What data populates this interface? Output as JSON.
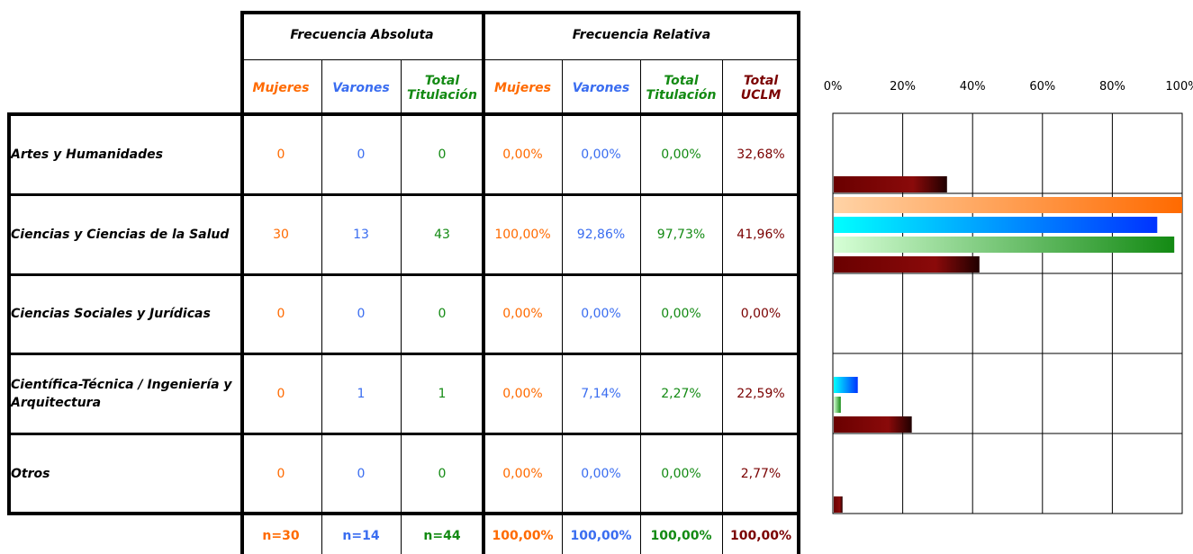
{
  "table": {
    "group_headers": {
      "absoluta": "Frecuencia Absoluta",
      "relativa": "Frecuencia Relativa"
    },
    "columns": [
      "Mujeres",
      "Varones",
      "Total Titulación",
      "Mujeres",
      "Varones",
      "Total Titulación",
      "Total UCLM"
    ],
    "rows": [
      {
        "category": "Artes y Humanidades",
        "values": [
          "0",
          "0",
          "0",
          "0,00%",
          "0,00%",
          "0,00%",
          "32,68%"
        ]
      },
      {
        "category": "Ciencias y Ciencias de la Salud",
        "values": [
          "30",
          "13",
          "43",
          "100,00%",
          "92,86%",
          "97,73%",
          "41,96%"
        ]
      },
      {
        "category": "Ciencias Sociales y Jurídicas",
        "values": [
          "0",
          "0",
          "0",
          "0,00%",
          "0,00%",
          "0,00%",
          "0,00%"
        ]
      },
      {
        "category": "Científica-Técnica / Ingeniería y Arquitectura",
        "values": [
          "0",
          "1",
          "1",
          "0,00%",
          "7,14%",
          "2,27%",
          "22,59%"
        ]
      },
      {
        "category": "Otros",
        "values": [
          "0",
          "0",
          "0",
          "0,00%",
          "0,00%",
          "0,00%",
          "2,77%"
        ]
      }
    ],
    "totals": [
      "n=30",
      "n=14",
      "n=44",
      "100,00%",
      "100,00%",
      "100,00%",
      "100,00%"
    ]
  },
  "colors": {
    "mujeres": "#ff6a00",
    "varones": "#3a6df0",
    "total": "#138a13",
    "uclm": "#7a0000"
  },
  "chart_data": {
    "type": "bar",
    "orientation": "horizontal",
    "categories": [
      "Artes y Humanidades",
      "Ciencias y Ciencias de la Salud",
      "Ciencias Sociales y Jurídicas",
      "Científica-Técnica / Ingeniería y Arquitectura",
      "Otros"
    ],
    "series": [
      {
        "values": [
          0,
          100,
          0,
          0,
          0
        ],
        "color": "#ff6a00"
      },
      {
        "values": [
          0,
          92.86,
          0,
          7.14,
          0
        ],
        "color": "#0033ff"
      },
      {
        "values": [
          0,
          97.73,
          0,
          2.27,
          0
        ],
        "color": "#138a13"
      },
      {
        "values": [
          32.68,
          41.96,
          0,
          22.59,
          2.77
        ],
        "color": "#7a0000"
      }
    ],
    "xlim": [
      0,
      100
    ],
    "x_ticks": [
      "0%",
      "20%",
      "40%",
      "60%",
      "80%",
      "100%"
    ],
    "axis_position": "top",
    "grid": true
  }
}
